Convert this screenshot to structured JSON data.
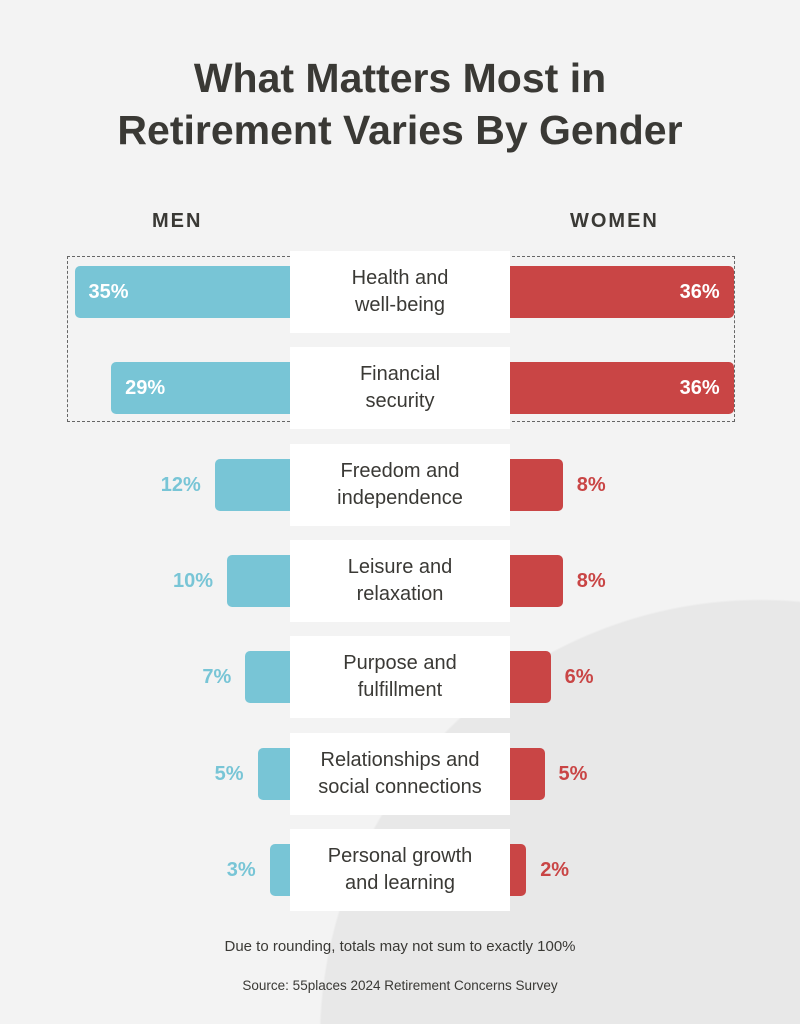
{
  "chart_data": {
    "type": "bar",
    "title": "What Matters Most in Retirement Varies By Gender",
    "orientation": "horizontal-diverging",
    "categories": [
      "Health and well-being",
      "Financial security",
      "Freedom and independence",
      "Leisure and relaxation",
      "Purpose and fulfillment",
      "Relationships and social connections",
      "Personal growth and learning"
    ],
    "category_lines": [
      [
        "Health and",
        "well-being"
      ],
      [
        "Financial",
        "security"
      ],
      [
        "Freedom and",
        "independence"
      ],
      [
        "Leisure and",
        "relaxation"
      ],
      [
        "Purpose and",
        "fulfillment"
      ],
      [
        "Relationships and",
        "social connections"
      ],
      [
        "Personal growth",
        "and learning"
      ]
    ],
    "series": [
      {
        "name": "MEN",
        "values": [
          35,
          29,
          12,
          10,
          7,
          5,
          3
        ],
        "color": "#78c5d6"
      },
      {
        "name": "WOMEN",
        "values": [
          36,
          36,
          8,
          8,
          6,
          5,
          2
        ],
        "color": "#c94545"
      }
    ],
    "unit": "%",
    "highlighted_categories": [
      "Health and well-being",
      "Financial security"
    ],
    "note": "Due to rounding, totals may not sum to exactly 100%",
    "source": "Source: 55places 2024 Retirement Concerns Survey"
  }
}
